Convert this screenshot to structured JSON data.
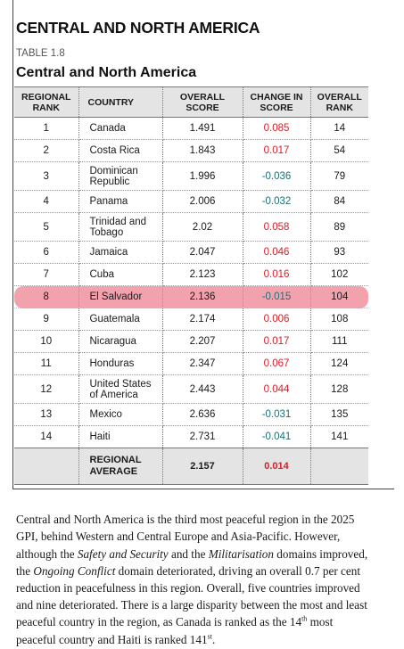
{
  "section_title": "CENTRAL AND NORTH AMERICA",
  "table_label": "TABLE 1.8",
  "table_title": "Central and North America",
  "columns": {
    "regional_rank": "REGIONAL RANK",
    "country": "COUNTRY",
    "overall_score": "OVERALL SCORE",
    "change_in_score": "CHANGE IN SCORE",
    "overall_rank": "OVERALL RANK"
  },
  "rows": [
    {
      "rank": "1",
      "country": "Canada",
      "score": "1.491",
      "change": "0.085",
      "overall": "14"
    },
    {
      "rank": "2",
      "country": "Costa Rica",
      "score": "1.843",
      "change": "0.017",
      "overall": "54"
    },
    {
      "rank": "3",
      "country": "Dominican Republic",
      "score": "1.996",
      "change": "-0.036",
      "overall": "79"
    },
    {
      "rank": "4",
      "country": "Panama",
      "score": "2.006",
      "change": "-0.032",
      "overall": "84"
    },
    {
      "rank": "5",
      "country": "Trinidad and Tobago",
      "score": "2.02",
      "change": "0.058",
      "overall": "89"
    },
    {
      "rank": "6",
      "country": "Jamaica",
      "score": "2.047",
      "change": "0.046",
      "overall": "93"
    },
    {
      "rank": "7",
      "country": "Cuba",
      "score": "2.123",
      "change": "0.016",
      "overall": "102"
    },
    {
      "rank": "8",
      "country": "El Salvador",
      "score": "2.136",
      "change": "-0.015",
      "overall": "104"
    },
    {
      "rank": "9",
      "country": "Guatemala",
      "score": "2.174",
      "change": "0.006",
      "overall": "108"
    },
    {
      "rank": "10",
      "country": "Nicaragua",
      "score": "2.207",
      "change": "0.017",
      "overall": "111"
    },
    {
      "rank": "11",
      "country": "Honduras",
      "score": "2.347",
      "change": "0.067",
      "overall": "124"
    },
    {
      "rank": "12",
      "country": "United States of America",
      "score": "2.443",
      "change": "0.044",
      "overall": "128"
    },
    {
      "rank": "13",
      "country": "Mexico",
      "score": "2.636",
      "change": "-0.031",
      "overall": "135"
    },
    {
      "rank": "14",
      "country": "Haiti",
      "score": "2.731",
      "change": "-0.041",
      "overall": "141"
    }
  ],
  "average": {
    "label": "REGIONAL AVERAGE",
    "score": "2.157",
    "change": "0.014"
  },
  "colors": {
    "positive_change": "#d4202b",
    "negative_change": "#1f6f72",
    "highlight": "#f2a2ac",
    "header_bg": "#e4e4e4"
  },
  "body": {
    "t1": "Central and North America is the third most peaceful region in the 2025 GPI, behind Western and Central Europe and Asia-Pacific. However, although the ",
    "em1": "Safety and Security",
    "t2": " and the ",
    "em2": "Militarisation",
    "t3": " domains improved, the ",
    "em3": "Ongoing Conflict",
    "t4": " domain deteriorated, driving an overall 0.7 per cent reduction in peacefulness in this region. Overall, five countries improved and nine deteriorated. There is a large disparity between the most and least peaceful country in the region, as Canada is ranked as the 14",
    "sup1": "th",
    "t5": " most peaceful country and Haiti is ranked 141",
    "sup2": "st",
    "t6": "."
  }
}
